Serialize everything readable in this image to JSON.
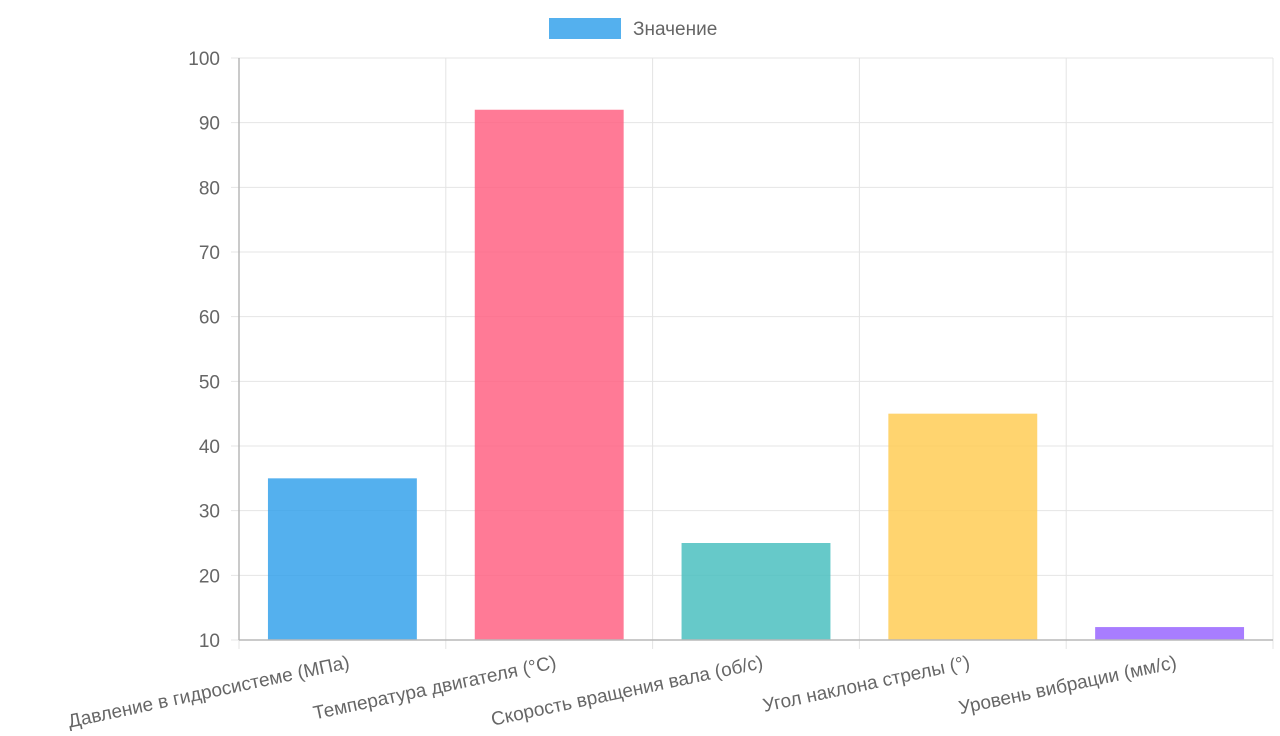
{
  "chart_data": {
    "type": "bar",
    "categories": [
      "Давление в гидросистеме (МПа)",
      "Температура двигателя (°C)",
      "Скорость вращения вала (об/с)",
      "Угол наклона стрелы (°)",
      "Уровень вибрации (мм/с)"
    ],
    "series": [
      {
        "name": "Значение",
        "values": [
          35,
          92,
          25,
          45,
          12
        ]
      }
    ],
    "bar_colors": [
      "#36A2EB",
      "#FF6384",
      "#4BC0C0",
      "#FFCD56",
      "#9966FF"
    ],
    "legend_color": "#36A2EB",
    "ylim": [
      10,
      100
    ],
    "yticks": [
      10,
      20,
      30,
      40,
      50,
      60,
      70,
      80,
      90,
      100
    ],
    "legend_position": "top",
    "grid": true
  }
}
